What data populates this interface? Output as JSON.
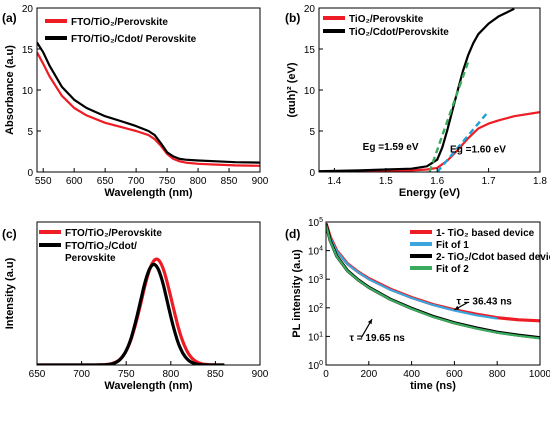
{
  "chart_data": [
    {
      "panel": "(a)",
      "type": "line",
      "xlabel": "Wavelength (nm)",
      "ylabel": "Absorbance (a.u)",
      "xlim": [
        540,
        900
      ],
      "ylim": [
        0,
        20
      ],
      "xticks": [
        550,
        600,
        650,
        700,
        750,
        800,
        850,
        900
      ],
      "yticks": [
        0,
        5,
        10,
        15,
        20
      ],
      "legend_position": "top-left",
      "series": [
        {
          "name": "FTO/TiO₂/Perovskite",
          "color": "#ee1c24",
          "x": [
            540,
            550,
            560,
            580,
            600,
            620,
            650,
            680,
            700,
            720,
            730,
            740,
            750,
            760,
            770,
            780,
            800,
            830,
            860,
            900
          ],
          "y": [
            14.6,
            13.2,
            11.7,
            9.3,
            7.8,
            6.9,
            6.0,
            5.4,
            5.0,
            4.5,
            4.0,
            3.2,
            2.2,
            1.6,
            1.3,
            1.15,
            1.0,
            0.9,
            0.8,
            0.75
          ]
        },
        {
          "name": "FTO/TiO₂/Cdot/ Perovskite",
          "color": "#000000",
          "x": [
            540,
            550,
            560,
            580,
            600,
            620,
            650,
            680,
            700,
            720,
            730,
            740,
            750,
            760,
            770,
            780,
            800,
            830,
            860,
            900
          ],
          "y": [
            15.8,
            14.6,
            13.0,
            10.4,
            8.8,
            7.8,
            6.8,
            6.1,
            5.6,
            5.0,
            4.5,
            3.5,
            2.4,
            1.9,
            1.6,
            1.5,
            1.4,
            1.3,
            1.2,
            1.15
          ]
        }
      ]
    },
    {
      "panel": "(b)",
      "type": "line",
      "xlabel": "Energy (eV)",
      "ylabel": "(αuh)² (eV)",
      "xlim": [
        1.37,
        1.8
      ],
      "ylim": [
        0,
        20
      ],
      "xticks": [
        1.4,
        1.5,
        1.6,
        1.7,
        1.8
      ],
      "yticks": [
        0,
        5,
        10,
        15,
        20
      ],
      "legend_position": "top-left",
      "series": [
        {
          "name": "TiO₂/Perovskite",
          "color": "#ee1c24",
          "x": [
            1.37,
            1.45,
            1.5,
            1.55,
            1.58,
            1.6,
            1.62,
            1.64,
            1.66,
            1.68,
            1.7,
            1.72,
            1.75,
            1.8
          ],
          "y": [
            0.05,
            0.1,
            0.15,
            0.2,
            0.3,
            0.5,
            1.4,
            2.7,
            4.1,
            5.3,
            5.9,
            6.3,
            6.8,
            7.3
          ]
        },
        {
          "name": "TiO₂/Cdot/Perovskite",
          "color": "#000000",
          "x": [
            1.37,
            1.45,
            1.5,
            1.55,
            1.58,
            1.6,
            1.61,
            1.62,
            1.63,
            1.64,
            1.65,
            1.66,
            1.67,
            1.68,
            1.7,
            1.72,
            1.75
          ],
          "y": [
            0.1,
            0.2,
            0.3,
            0.4,
            0.7,
            1.5,
            3.0,
            5.2,
            7.6,
            10.0,
            12.3,
            14.2,
            15.7,
            16.8,
            18.1,
            19.0,
            19.9
          ]
        }
      ],
      "fits": [
        {
          "color": "#1ca2d6",
          "x": [
            1.6,
            1.7
          ],
          "y": [
            0.0,
            7.4
          ]
        },
        {
          "color": "#3aaa5c",
          "x": [
            1.585,
            1.66
          ],
          "y": [
            0.0,
            13.4
          ]
        }
      ],
      "annotations": [
        {
          "text": "Eg =1.59 eV",
          "x": 1.455,
          "y": 2.7
        },
        {
          "text": "Eg =1.60 eV",
          "x": 1.625,
          "y": 2.4
        }
      ]
    },
    {
      "panel": "(c)",
      "type": "line",
      "xlabel": "Wavelength (nm)",
      "ylabel": "Intensity (a.u)",
      "xlim": [
        650,
        900
      ],
      "ylim": [
        0,
        1.35
      ],
      "xticks": [
        650,
        700,
        750,
        800,
        850,
        900
      ],
      "legend_position": "top-left",
      "series": [
        {
          "name": "FTO/TiO₂/Perovskite",
          "color": "#ee1c24",
          "peak_x": 784,
          "peak_y": 1.0,
          "fwhm": 40
        },
        {
          "name": "FTO/TiO₂/Cdot/\nPerovskite",
          "color": "#000000",
          "peak_x": 781,
          "peak_y": 0.95,
          "fwhm": 37
        }
      ]
    },
    {
      "panel": "(d)",
      "type": "line",
      "xlabel": "time (ns)",
      "ylabel": "PL intensity (a.u)",
      "xlim": [
        0,
        1000
      ],
      "yscale": "log",
      "ylim": [
        1,
        100000
      ],
      "xticks": [
        0,
        200,
        400,
        600,
        800,
        1000
      ],
      "yticks": [
        1,
        10,
        100,
        1000,
        10000,
        100000
      ],
      "yticklabels": [
        "10 0",
        "10 1",
        "10 2",
        "10 3",
        "10 4",
        "10 5"
      ],
      "legend_position": "top-right",
      "series": [
        {
          "name": "1- TiO₂ based device",
          "color": "#ee1c24",
          "x": [
            0,
            20,
            50,
            100,
            150,
            200,
            300,
            400,
            500,
            600,
            700,
            800,
            900,
            1000
          ],
          "y": [
            90000,
            30000,
            10000,
            3500,
            1800,
            1050,
            450,
            230,
            130,
            85,
            60,
            45,
            38,
            35
          ]
        },
        {
          "name": "Fit of 1",
          "color": "#3aa6dd",
          "x": [
            0,
            20,
            50,
            100,
            150,
            200,
            300,
            400,
            500,
            600,
            700,
            800
          ],
          "y": [
            80000,
            28000,
            9500,
            3400,
            1750,
            1000,
            430,
            220,
            125,
            80,
            55,
            42
          ]
        },
        {
          "name": "2- TiO₂/Cdot based device",
          "color": "#000000",
          "x": [
            0,
            20,
            50,
            100,
            150,
            200,
            300,
            400,
            500,
            600,
            700,
            800,
            900,
            1000
          ],
          "y": [
            85000,
            22000,
            6500,
            2000,
            950,
            520,
            200,
            95,
            50,
            30,
            20,
            14,
            11,
            9
          ]
        },
        {
          "name": "Fit of 2",
          "color": "#3aaa5c",
          "x": [
            0,
            20,
            50,
            100,
            150,
            200,
            300,
            400,
            500,
            600,
            700,
            800,
            900,
            1000
          ],
          "y": [
            80000,
            21000,
            6300,
            1950,
            930,
            510,
            195,
            92,
            48,
            29,
            19,
            13.5,
            10.5,
            8.5
          ]
        }
      ],
      "annotations": [
        {
          "text": "τ = 36.43 ns",
          "x": 610,
          "y": 130
        },
        {
          "text": "τ = 19.65 ns",
          "x": 110,
          "y": 7
        }
      ]
    }
  ]
}
